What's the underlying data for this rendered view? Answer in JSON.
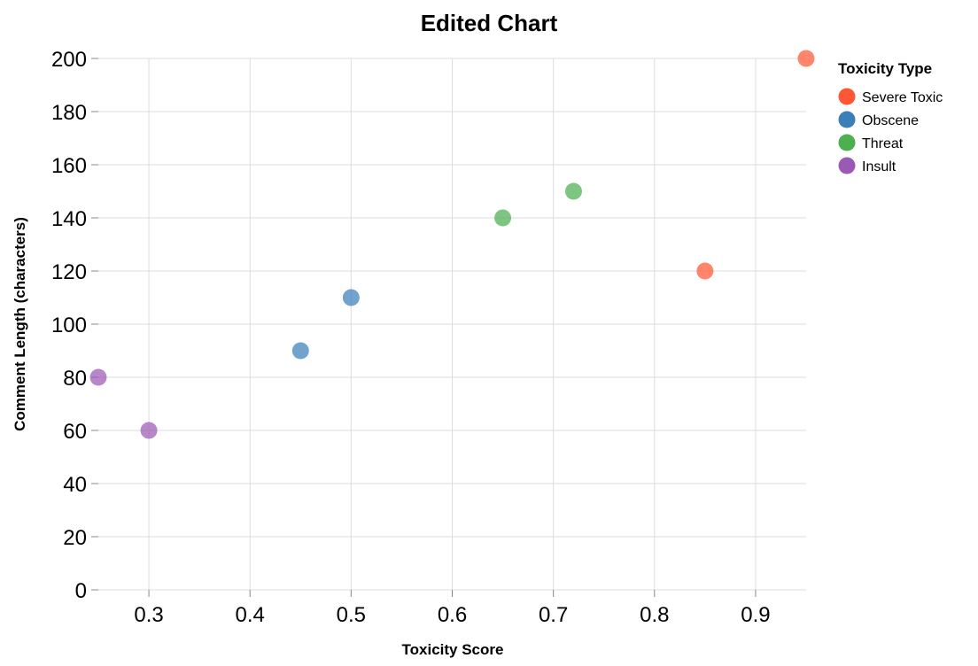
{
  "chart_data": {
    "type": "scatter",
    "title": "Edited Chart",
    "xlabel": "Toxicity Score",
    "ylabel": "Comment Length (characters)",
    "xlim": [
      0.25,
      0.95
    ],
    "ylim": [
      0,
      200
    ],
    "x_ticks": [
      "0.3",
      "0.4",
      "0.5",
      "0.6",
      "0.7",
      "0.8",
      "0.9"
    ],
    "y_ticks": [
      "0",
      "20",
      "40",
      "60",
      "80",
      "100",
      "120",
      "140",
      "160",
      "180",
      "200"
    ],
    "grid": true,
    "legend": {
      "title": "Toxicity Type",
      "placement": "top-right"
    },
    "series": [
      {
        "name": "Severe Toxic",
        "color": "#ff5733",
        "points": [
          {
            "x": 0.85,
            "y": 120
          },
          {
            "x": 0.95,
            "y": 200
          }
        ]
      },
      {
        "name": "Obscene",
        "color": "#3a7fb8",
        "points": [
          {
            "x": 0.45,
            "y": 90
          },
          {
            "x": 0.5,
            "y": 110
          }
        ]
      },
      {
        "name": "Threat",
        "color": "#4caf50",
        "points": [
          {
            "x": 0.65,
            "y": 140
          },
          {
            "x": 0.72,
            "y": 150
          }
        ]
      },
      {
        "name": "Insult",
        "color": "#9b59b6",
        "points": [
          {
            "x": 0.25,
            "y": 80
          },
          {
            "x": 0.3,
            "y": 60
          }
        ]
      }
    ]
  }
}
